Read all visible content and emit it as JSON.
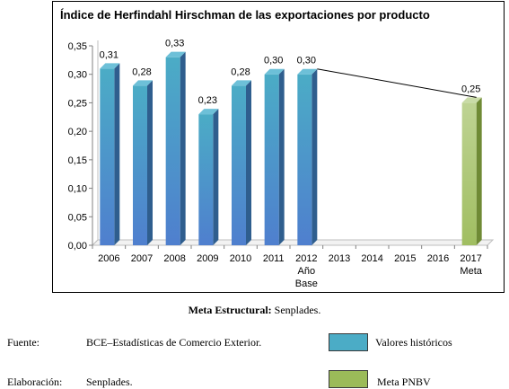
{
  "chart_data": {
    "type": "bar",
    "title": "Índice de Herfindahl Hirschman de las exportaciones por producto",
    "categories": [
      [
        "2006"
      ],
      [
        "2007"
      ],
      [
        "2008"
      ],
      [
        "2009"
      ],
      [
        "2010"
      ],
      [
        "2011"
      ],
      [
        "2012",
        "Año",
        "Base"
      ],
      [
        "2013"
      ],
      [
        "2014"
      ],
      [
        "2015"
      ],
      [
        "2016"
      ],
      [
        "2017",
        "Meta"
      ]
    ],
    "series": [
      {
        "name": "Valores históricos",
        "color": "#4bacc6",
        "values": [
          0.31,
          0.28,
          0.33,
          0.23,
          0.28,
          0.3,
          0.3,
          null,
          null,
          null,
          null,
          null
        ],
        "labels": [
          "0,31",
          "0,28",
          "0,33",
          "0,23",
          "0,28",
          "0,30",
          "0,30",
          "",
          "",
          "",
          "",
          ""
        ]
      },
      {
        "name": "Meta PNBV",
        "color": "#9bbb59",
        "values": [
          null,
          null,
          null,
          null,
          null,
          null,
          null,
          null,
          null,
          null,
          null,
          0.25
        ],
        "labels": [
          "",
          "",
          "",
          "",
          "",
          "",
          "",
          "",
          "",
          "",
          "",
          "0,25"
        ]
      }
    ],
    "ylim": [
      0,
      0.35
    ],
    "yticks": [
      "0,00",
      "0,05",
      "0,10",
      "0,15",
      "0,20",
      "0,25",
      "0,30",
      "0,35"
    ],
    "ytick_values": [
      0,
      0.05,
      0.1,
      0.15,
      0.2,
      0.25,
      0.3,
      0.35
    ],
    "trend_line": {
      "from_index": 6,
      "to_index": 11
    },
    "grid": false,
    "style": "3d-column"
  },
  "meta_line": {
    "bold": "Meta Estructural:",
    "text": " Senplades."
  },
  "footer": {
    "source_label": "Fuente:",
    "source_text": "BCE–Estadísticas de Comercio Exterior.",
    "prepared_label": "Elaboración:",
    "prepared_text": "Senplades.",
    "legend_historic": "Valores históricos",
    "legend_goal": "Meta PNBV",
    "legend_historic_color": "#4bacc6",
    "legend_goal_color": "#9bbb59"
  }
}
